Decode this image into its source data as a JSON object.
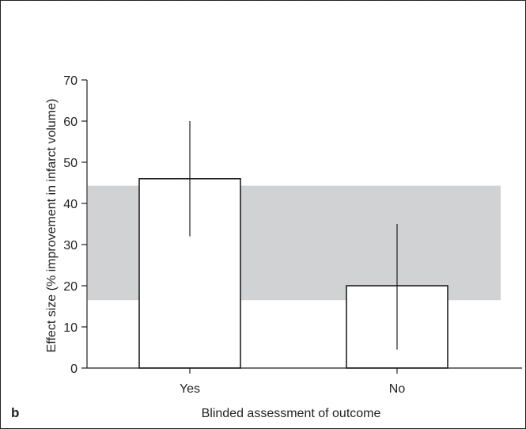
{
  "chart_data": {
    "type": "bar",
    "panel_label": "b",
    "xlabel": "Blinded assessment of outcome",
    "ylabel": "Effect size (% improvement in infarct volume)",
    "categories": [
      "Yes",
      "No"
    ],
    "values": [
      46,
      20
    ],
    "error_bars": [
      {
        "low": 32,
        "high": 60
      },
      {
        "low": 4.5,
        "high": 35
      }
    ],
    "reference_band": {
      "low": 16.5,
      "high": 44.3
    },
    "ylim": [
      0,
      70
    ],
    "yticks": [
      0,
      10,
      20,
      30,
      40,
      50,
      60,
      70
    ],
    "grid": false,
    "colors": {
      "bar_fill": "#ffffff",
      "bar_stroke": "#231f20",
      "band": "#d1d2d4",
      "axis": "#231f20",
      "frame": "#231f20"
    }
  }
}
